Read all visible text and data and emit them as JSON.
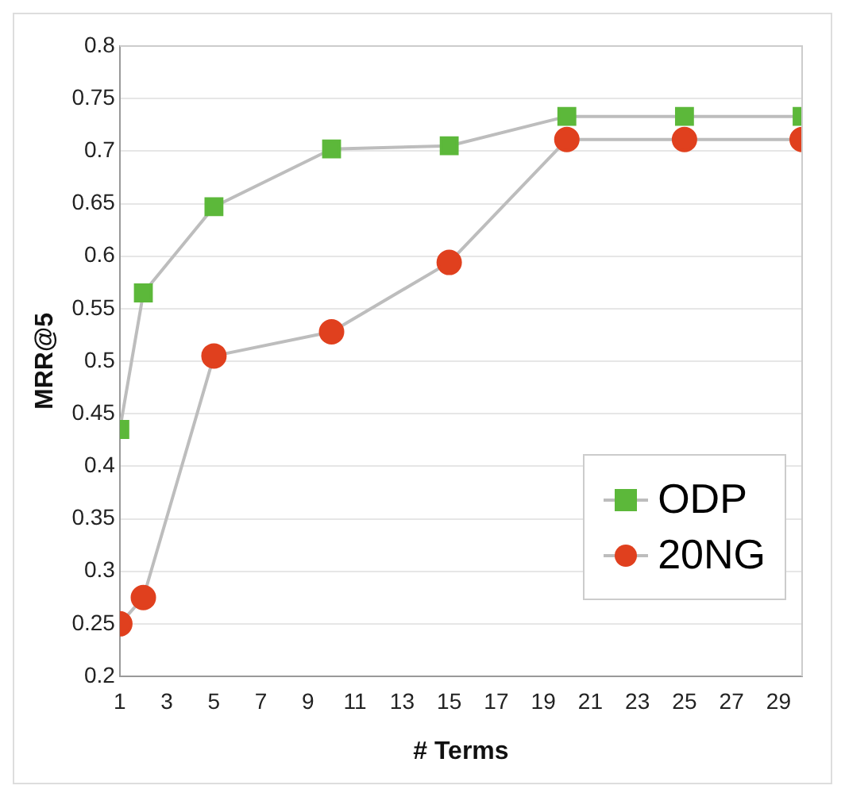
{
  "chart_data": {
    "type": "line",
    "xlabel": "# Terms",
    "ylabel": "MRR@5",
    "x": [
      1,
      2,
      5,
      10,
      15,
      20,
      25,
      30
    ],
    "series": [
      {
        "name": "ODP",
        "color": "#5cb83a",
        "marker": "square",
        "values": [
          0.435,
          0.565,
          0.647,
          0.702,
          0.705,
          0.733,
          0.733,
          0.733
        ]
      },
      {
        "name": "20NG",
        "color": "#e0401e",
        "marker": "circle",
        "values": [
          0.25,
          0.275,
          0.505,
          0.528,
          0.594,
          0.711,
          0.711,
          0.711
        ]
      }
    ],
    "xlim": [
      1,
      30
    ],
    "xticks": [
      1,
      3,
      5,
      7,
      9,
      11,
      13,
      15,
      17,
      19,
      21,
      23,
      25,
      27,
      29
    ],
    "ylim": [
      0.2,
      0.8
    ],
    "yticks": [
      0.2,
      0.25,
      0.3,
      0.35,
      0.4,
      0.45,
      0.5,
      0.55,
      0.6,
      0.65,
      0.7,
      0.75,
      0.8
    ],
    "grid": "y",
    "legend": "bottom right",
    "line_style": "solid"
  }
}
